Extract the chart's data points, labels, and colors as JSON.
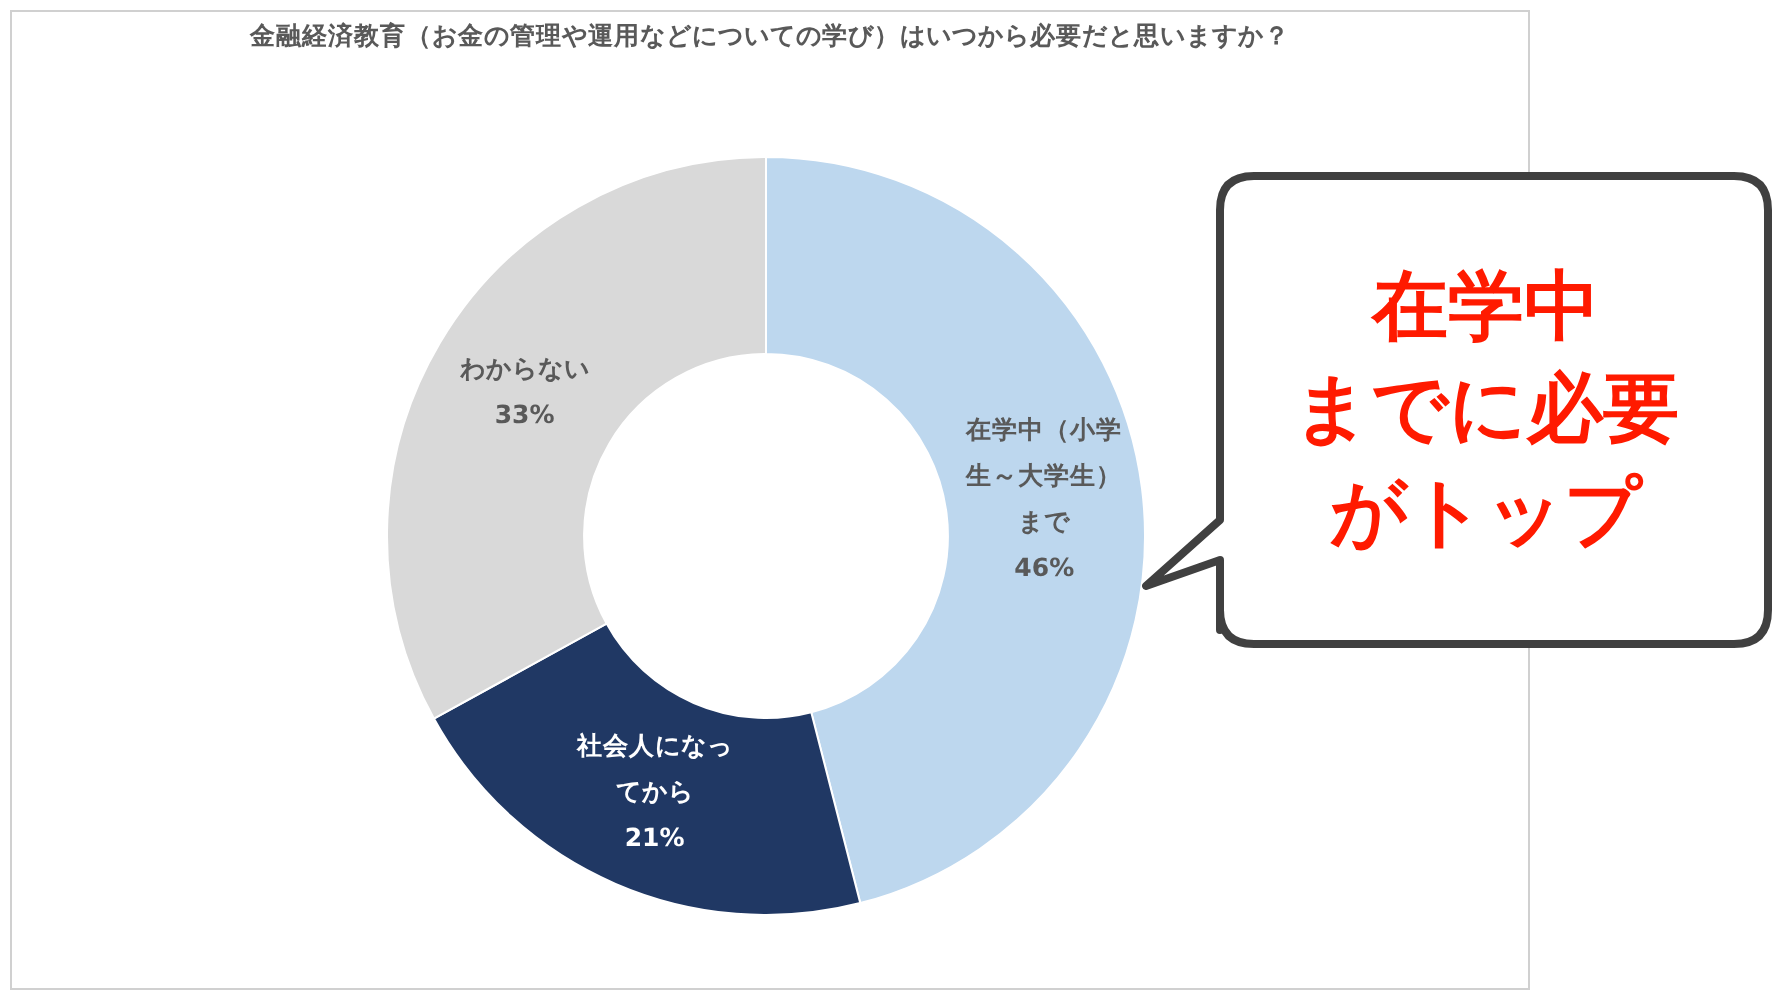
{
  "chart_data": {
    "type": "donut",
    "title": "金融経済教育（お金の管理や運用などについての学び）はいつから必要だと思いますか？",
    "categories": [
      "在学中（小学生～大学生）まで",
      "社会人になってから",
      "わからない"
    ],
    "values": [
      46,
      21,
      33
    ],
    "colors": [
      "#bdd7ee",
      "#203864",
      "#d9d9d9"
    ],
    "value_labels": [
      "46%",
      "21%",
      "33%"
    ],
    "annotations": [
      "在学中",
      "までに必要",
      "がトップ"
    ],
    "legend": false
  }
}
